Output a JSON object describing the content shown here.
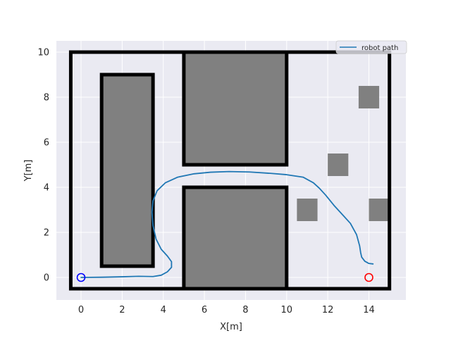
{
  "chart_data": {
    "type": "line",
    "title": "",
    "xlabel": "X[m]",
    "ylabel": "Y[m]",
    "xlim": [
      -1.2,
      15.8
    ],
    "ylim": [
      -1.0,
      10.5
    ],
    "xticks": [
      0,
      2,
      4,
      6,
      8,
      10,
      12,
      14
    ],
    "yticks": [
      0,
      2,
      4,
      6,
      8,
      10
    ],
    "grid": true,
    "legend_position": "top-right",
    "colors": {
      "background": "#eaeaf2",
      "grid": "#ffffff",
      "path": "#1f77b4",
      "walls": "#000000",
      "obstacles": "#808080",
      "start": "#0000ff",
      "goal": "#ff0000"
    },
    "series": [
      {
        "name": "robot path",
        "x": [
          0.0,
          1.0,
          2.0,
          2.8,
          3.5,
          3.9,
          4.2,
          4.4,
          4.4,
          4.2,
          3.9,
          3.65,
          3.5,
          3.45,
          3.5,
          3.7,
          4.1,
          4.7,
          5.5,
          6.3,
          7.2,
          8.2,
          9.2,
          10.0,
          10.8,
          11.3,
          11.6,
          11.9,
          12.3,
          12.7,
          13.1,
          13.4,
          13.55,
          13.6,
          13.65,
          13.8,
          14.0,
          14.2
        ],
        "y": [
          0.0,
          0.01,
          0.03,
          0.05,
          0.04,
          0.1,
          0.25,
          0.45,
          0.7,
          0.95,
          1.25,
          1.7,
          2.3,
          2.9,
          3.4,
          3.85,
          4.2,
          4.45,
          4.6,
          4.67,
          4.7,
          4.68,
          4.62,
          4.56,
          4.45,
          4.2,
          3.95,
          3.65,
          3.2,
          2.8,
          2.4,
          1.9,
          1.4,
          1.1,
          0.9,
          0.72,
          0.62,
          0.6
        ]
      }
    ],
    "walls": [
      {
        "x": [
          -0.5,
          -0.5,
          15.0,
          15.0,
          -0.5
        ],
        "y": [
          -0.5,
          10.0,
          10.0,
          -0.5,
          -0.5
        ]
      },
      {
        "x": [
          1.0,
          3.5,
          3.5,
          1.0,
          1.0
        ],
        "y": [
          0.5,
          0.5,
          9.0,
          9.0,
          0.5
        ]
      },
      {
        "x": [
          5.0,
          10.0,
          10.0,
          5.0,
          5.0
        ],
        "y": [
          5.0,
          5.0,
          10.0,
          10.0,
          5.0
        ]
      },
      {
        "x": [
          5.0,
          10.0,
          10.0,
          5.0,
          5.0
        ],
        "y": [
          -0.5,
          -0.5,
          4.0,
          4.0,
          -0.5
        ]
      }
    ],
    "obstacles": [
      {
        "x": 13.5,
        "y": 7.5,
        "w": 1.0,
        "h": 1.0
      },
      {
        "x": 12.0,
        "y": 4.5,
        "w": 1.0,
        "h": 1.0
      },
      {
        "x": 10.5,
        "y": 2.5,
        "w": 1.0,
        "h": 1.0
      },
      {
        "x": 14.0,
        "y": 2.5,
        "w": 1.0,
        "h": 1.0
      }
    ],
    "start": {
      "x": 0.0,
      "y": 0.0
    },
    "goal": {
      "x": 14.0,
      "y": 0.0
    }
  }
}
